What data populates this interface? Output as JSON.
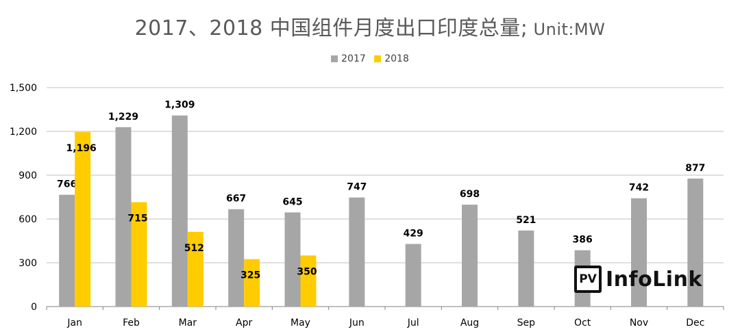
{
  "title_main": "2017、2018 中国组件月度出口印度总量;",
  "title_unit": " Unit:MW",
  "logo": {
    "box_text": "PV",
    "text": "InfoLink"
  },
  "colors": {
    "2017": "#A6A6A6",
    "2018": "#FFCC00",
    "grid": "#BFBFBF",
    "axis_text": "#000000"
  },
  "chart_data": {
    "type": "bar",
    "title": "2017、2018 中国组件月度出口印度总量; Unit:MW",
    "xlabel": "",
    "ylabel": "",
    "ylim": [
      0,
      1500
    ],
    "yticks": [
      "0",
      "300",
      "600",
      "900",
      "1,200",
      "1,500"
    ],
    "ytick_values": [
      0,
      300,
      600,
      900,
      1200,
      1500
    ],
    "grid": true,
    "legend_position": "top-center",
    "categories": [
      "Jan",
      "Feb",
      "Mar",
      "Apr",
      "May",
      "Jun",
      "Jul",
      "Aug",
      "Sep",
      "Oct",
      "Nov",
      "Dec"
    ],
    "series": [
      {
        "name": "2017",
        "values": [
          766,
          1229,
          1309,
          667,
          645,
          747,
          429,
          698,
          521,
          386,
          742,
          877
        ],
        "labels": [
          "766",
          "1,229",
          "1,309",
          "667",
          "645",
          "747",
          "429",
          "698",
          "521",
          "386",
          "742",
          "877"
        ]
      },
      {
        "name": "2018",
        "values": [
          1196,
          715,
          512,
          325,
          350,
          null,
          null,
          null,
          null,
          null,
          null,
          null
        ],
        "labels": [
          "1,196",
          "715",
          "512",
          "325",
          "350",
          "",
          "",
          "",
          "",
          "",
          "",
          ""
        ]
      }
    ]
  }
}
